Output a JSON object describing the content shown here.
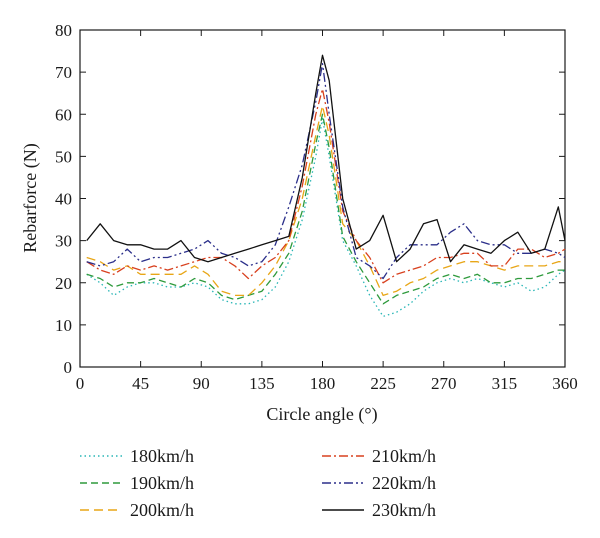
{
  "chart_data": {
    "type": "line",
    "title": "",
    "xlabel": "Circle angle (°)",
    "ylabel": "Rebarforce (N)",
    "xlim": [
      0,
      360
    ],
    "ylim": [
      0,
      80
    ],
    "xticks": [
      0,
      45,
      90,
      135,
      180,
      225,
      270,
      315,
      360
    ],
    "yticks": [
      0,
      10,
      20,
      30,
      40,
      50,
      60,
      70,
      80
    ],
    "grid": false,
    "legend_position": "below",
    "x": [
      5,
      15,
      25,
      35,
      45,
      55,
      65,
      75,
      85,
      95,
      105,
      115,
      125,
      135,
      145,
      155,
      165,
      175,
      180,
      185,
      195,
      205,
      215,
      225,
      235,
      245,
      255,
      265,
      275,
      285,
      295,
      305,
      315,
      325,
      335,
      345,
      355,
      360
    ],
    "series": [
      {
        "name": "180km/h",
        "color": "#29b6b6",
        "dash": "1.5,3",
        "values": [
          22,
          20,
          17,
          19,
          20,
          20,
          19,
          19,
          20,
          19,
          16,
          15,
          15,
          16,
          19,
          25,
          35,
          50,
          59,
          50,
          30,
          24,
          17,
          12,
          13,
          15,
          18,
          20,
          21,
          20,
          21,
          20,
          19,
          20,
          18,
          19,
          22,
          23
        ]
      },
      {
        "name": "190km/h",
        "color": "#2e9a3c",
        "dash": "7,4",
        "values": [
          22,
          21,
          19,
          20,
          20,
          21,
          20,
          19,
          21,
          20,
          17,
          16,
          17,
          18,
          22,
          27,
          37,
          53,
          60,
          52,
          31,
          25,
          20,
          15,
          17,
          18,
          19,
          21,
          22,
          21,
          22,
          20,
          20,
          21,
          21,
          22,
          23,
          23
        ]
      },
      {
        "name": "200km/h",
        "color": "#e8a617",
        "dash": "9,5",
        "values": [
          26,
          25,
          23,
          24,
          22,
          22,
          22,
          22,
          24,
          22,
          18,
          17,
          17,
          20,
          24,
          30,
          40,
          55,
          62,
          55,
          34,
          30,
          24,
          17,
          18,
          20,
          21,
          23,
          24,
          25,
          25,
          24,
          23,
          24,
          24,
          24,
          25,
          25
        ]
      },
      {
        "name": "210km/h",
        "color": "#d8401e",
        "dash": "9,3,2,3",
        "values": [
          25,
          23,
          22,
          24,
          23,
          24,
          23,
          24,
          25,
          26,
          26,
          24,
          21,
          24,
          26,
          30,
          43,
          60,
          66,
          58,
          37,
          30,
          26,
          20,
          22,
          23,
          24,
          26,
          26,
          27,
          27,
          24,
          24,
          28,
          28,
          26,
          27,
          28
        ]
      },
      {
        "name": "220km/h",
        "color": "#2b2f8a",
        "dash": "9,3,2,3,2,3",
        "values": [
          25,
          24,
          25,
          28,
          25,
          26,
          26,
          27,
          28,
          30,
          27,
          26,
          24,
          25,
          29,
          38,
          48,
          63,
          72,
          60,
          38,
          26,
          24,
          21,
          26,
          29,
          29,
          29,
          32,
          34,
          30,
          29,
          29,
          27,
          27,
          28,
          27,
          26
        ]
      },
      {
        "name": "230km/h",
        "color": "#111111",
        "dash": "",
        "values": [
          30,
          34,
          30,
          29,
          29,
          28,
          28,
          30,
          26,
          25,
          26,
          27,
          28,
          29,
          30,
          31,
          45,
          65,
          74,
          68,
          40,
          28,
          30,
          36,
          25,
          28,
          34,
          35,
          25,
          29,
          28,
          27,
          30,
          32,
          27,
          28,
          38,
          30
        ]
      }
    ]
  }
}
